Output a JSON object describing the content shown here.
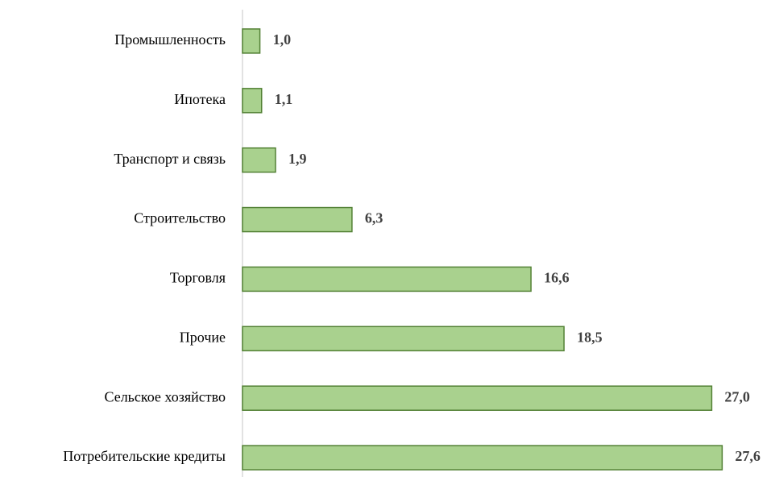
{
  "chart_data": {
    "type": "bar",
    "orientation": "horizontal",
    "categories": [
      "Промышленность",
      "Ипотека",
      "Транспорт  и связь",
      "Строительство",
      "Торговля",
      "Прочие",
      "Сельское хозяйство",
      "Потребительские кредиты"
    ],
    "values": [
      1.0,
      1.1,
      1.9,
      6.3,
      16.6,
      18.5,
      27.0,
      27.6
    ],
    "value_labels": [
      "1,0",
      "1,1",
      "1,9",
      "6,3",
      "16,6",
      "18,5",
      "27,0",
      "27,6"
    ],
    "color": "#a9d18e",
    "edge_color": "#538135",
    "xlim": [
      0,
      28
    ]
  }
}
